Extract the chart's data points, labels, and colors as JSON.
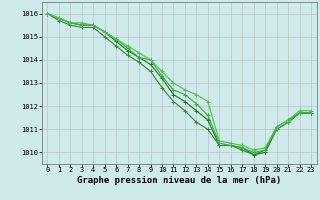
{
  "x": [
    0,
    1,
    2,
    3,
    4,
    5,
    6,
    7,
    8,
    9,
    10,
    11,
    12,
    13,
    14,
    15,
    16,
    17,
    18,
    19,
    20,
    21,
    22,
    23
  ],
  "series": [
    [
      1016.0,
      1015.8,
      1015.6,
      1015.5,
      1015.5,
      1015.2,
      1014.8,
      1014.4,
      1014.1,
      1013.8,
      1013.2,
      1012.5,
      1012.2,
      1011.8,
      1011.4,
      1010.3,
      1010.3,
      1010.2,
      1009.9,
      1010.0,
      1011.0,
      1011.3,
      1011.7,
      1011.7
    ],
    [
      1016.0,
      1015.7,
      1015.5,
      1015.4,
      1015.4,
      1015.0,
      1014.6,
      1014.2,
      1013.9,
      1013.5,
      1012.8,
      1012.2,
      1011.8,
      1011.3,
      1011.0,
      1010.3,
      1010.3,
      1010.1,
      1009.9,
      1010.1,
      1011.1,
      1011.4,
      1011.7,
      1011.7
    ],
    [
      1016.0,
      1015.8,
      1015.6,
      1015.5,
      1015.5,
      1015.2,
      1014.9,
      1014.5,
      1014.1,
      1014.0,
      1013.3,
      1012.7,
      1012.5,
      1012.1,
      1011.6,
      1010.4,
      1010.3,
      1010.2,
      1010.0,
      1010.1,
      1011.0,
      1011.3,
      1011.7,
      1011.7
    ],
    [
      1016.0,
      1015.8,
      1015.6,
      1015.6,
      1015.5,
      1015.2,
      1014.9,
      1014.6,
      1014.3,
      1014.0,
      1013.5,
      1013.0,
      1012.7,
      1012.5,
      1012.2,
      1010.5,
      1010.4,
      1010.3,
      1010.1,
      1010.2,
      1011.1,
      1011.4,
      1011.8,
      1011.8
    ]
  ],
  "line_colors": [
    "#1a7a1a",
    "#2d8c2d",
    "#3aaa3a",
    "#4dbf4d"
  ],
  "marker": "+",
  "marker_size": 3,
  "ylim": [
    1009.5,
    1016.5
  ],
  "xlim": [
    -0.5,
    23.5
  ],
  "yticks": [
    1010,
    1011,
    1012,
    1013,
    1014,
    1015,
    1016
  ],
  "xticks": [
    0,
    1,
    2,
    3,
    4,
    5,
    6,
    7,
    8,
    9,
    10,
    11,
    12,
    13,
    14,
    15,
    16,
    17,
    18,
    19,
    20,
    21,
    22,
    23
  ],
  "xlabel": "Graphe pression niveau de la mer (hPa)",
  "bg_color": "#ceeaea",
  "grid_color": "#bbbbbb",
  "grid_color_minor": "#dddddd",
  "line_width": 0.8,
  "tick_fontsize": 5.0,
  "label_fontsize": 6.5
}
